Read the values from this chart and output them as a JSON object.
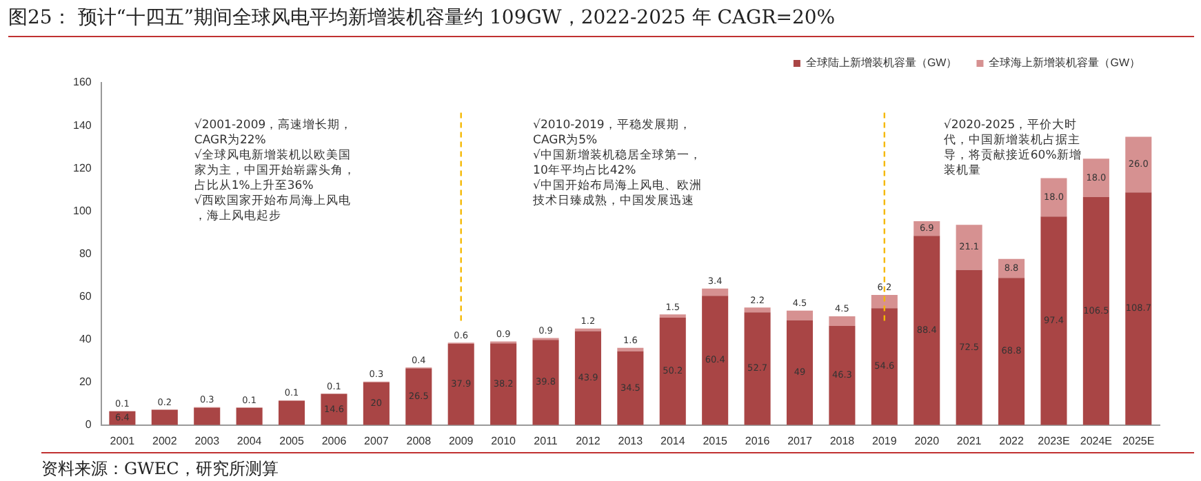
{
  "chart_data": {
    "type": "bar",
    "stacked": true,
    "title": "图25：  预计“十四五”期间全球风电平均新增装机容量约 109GW，2022-2025 年 CAGR=20%",
    "categories": [
      "2001",
      "2002",
      "2003",
      "2004",
      "2005",
      "2006",
      "2007",
      "2008",
      "2009",
      "2010",
      "2011",
      "2012",
      "2013",
      "2014",
      "2015",
      "2016",
      "2017",
      "2018",
      "2019",
      "2020",
      "2021",
      "2022",
      "2023E",
      "2024E",
      "2025E"
    ],
    "series": [
      {
        "name": "全球陆上新增装机容量（GW）",
        "color": "#a94545",
        "values": [
          6.4,
          7.1,
          8.1,
          8.1,
          11.4,
          14.6,
          20,
          26.5,
          37.9,
          38.2,
          39.8,
          43.9,
          34.5,
          50.2,
          60.4,
          52.7,
          49,
          46.3,
          54.6,
          88.4,
          72.5,
          68.8,
          97.4,
          106.5,
          108.7
        ],
        "value_labels": [
          "6.4",
          null,
          null,
          null,
          null,
          "14.6",
          "20",
          "26.5",
          "37.9",
          "38.2",
          "39.8",
          "43.9",
          "34.5",
          "50.2",
          "60.4",
          "52.7",
          "49",
          "46.3",
          "54.6",
          "88.4",
          "72.5",
          "68.8",
          "97.4",
          "106.5",
          "108.7"
        ]
      },
      {
        "name": "全球海上新增装机容量（GW）",
        "color": "#d69191",
        "values": [
          0.1,
          0.2,
          0.3,
          0.1,
          0.1,
          0.1,
          0.3,
          0.4,
          0.6,
          0.9,
          0.9,
          1.2,
          1.6,
          1.5,
          3.4,
          2.2,
          4.5,
          4.5,
          6.2,
          6.9,
          21.1,
          8.8,
          18.0,
          18.0,
          26.0
        ],
        "value_labels": [
          "0.1",
          "0.2",
          "0.3",
          "0.1",
          "0.1",
          "0.1",
          "0.3",
          "0.4",
          "0.6",
          "0.9",
          "0.9",
          "1.2",
          "1.6",
          "1.5",
          "3.4",
          "2.2",
          "4.5",
          "4.5",
          "6.2",
          "6.9",
          "21.1",
          "8.8",
          "18.0",
          "18.0",
          "26.0"
        ]
      }
    ],
    "ylim": [
      0,
      160
    ],
    "yticks": [
      0,
      20,
      40,
      60,
      80,
      100,
      120,
      140,
      160
    ],
    "grid": false,
    "legend": "top right",
    "ref_lines": [
      {
        "axis": "x",
        "value": "2009",
        "color": "#f5b800",
        "line_style": "dashed"
      },
      {
        "axis": "x",
        "value": "2019",
        "color": "#f5b800",
        "line_style": "dashed"
      }
    ],
    "annotations": [
      "√2001-2009，高速增长期，CAGR为22%\n√全球风电新增装机以欧美国家为主，中国开始崭露头角，占比从1%上升至36%\n√西欧国家开始布局海上风电，海上风电起步",
      "√2010-2019，平稳发展期，CAGR为5%\n√中国新增装机稳居全球第一，10年平均占比42%\n√中国开始布局海上风电、欧洲技术日臻成熟，中国发展迅速",
      "√2020-2025，平价大时代，中国新增装机占据主导，将贡献接近60%新增装机量",
      "资料来源：GWEC，研究所测算"
    ]
  }
}
